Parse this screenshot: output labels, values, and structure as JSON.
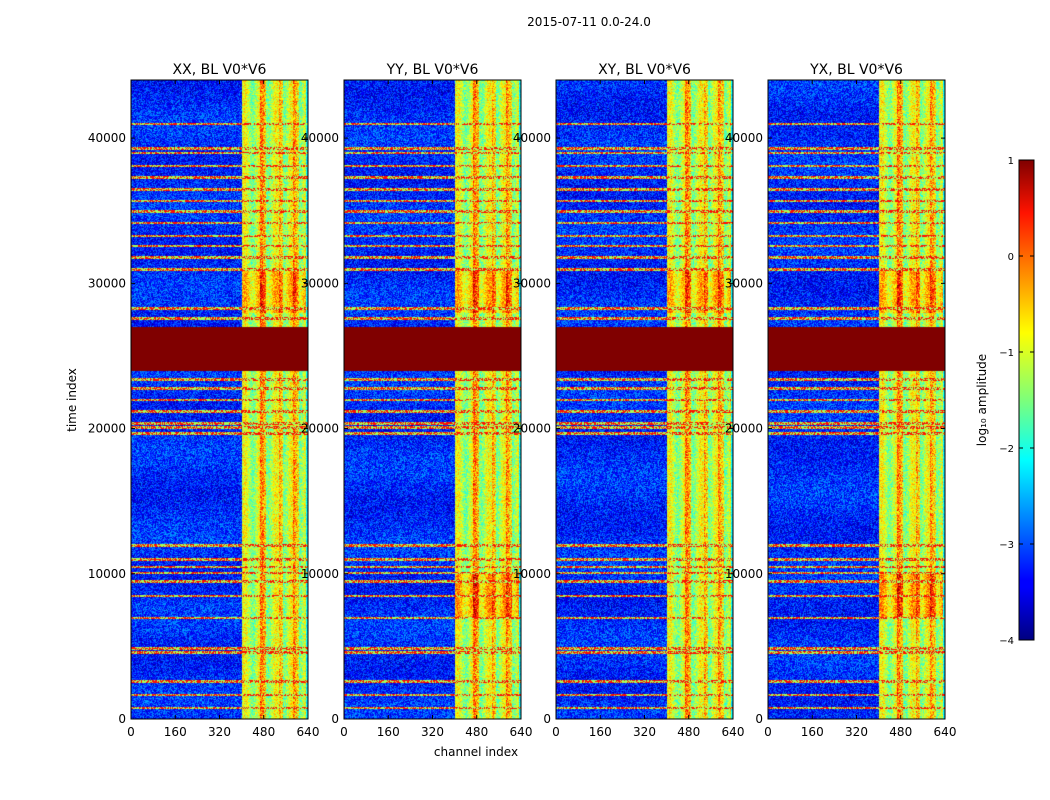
{
  "figure": {
    "suptitle": "2015-07-11 0.0-24.0"
  },
  "chart_data": {
    "type": "heatmap",
    "panels": [
      {
        "title": "XX, BL V0*V6",
        "polarization": "XX"
      },
      {
        "title": "YY, BL V0*V6",
        "polarization": "YY"
      },
      {
        "title": "XY, BL V0*V6",
        "polarization": "XY"
      },
      {
        "title": "YX, BL V0*V6",
        "polarization": "YX"
      }
    ],
    "xlabel": "channel index",
    "ylabel": "time index",
    "xlim": [
      0,
      640
    ],
    "ylim": [
      0,
      44000
    ],
    "xticks": [
      0,
      160,
      320,
      480,
      640
    ],
    "yticks": [
      0,
      10000,
      20000,
      30000,
      40000
    ],
    "xtick_labels": [
      "0",
      "160",
      "320",
      "480",
      "640"
    ],
    "ytick_labels": [
      "0",
      "10000",
      "20000",
      "30000",
      "40000"
    ],
    "colorbar": {
      "label": "log₁₀ amplitude",
      "range": [
        -4,
        1
      ],
      "ticks": [
        -4,
        -3,
        -2,
        -1,
        0,
        1
      ],
      "tick_labels": [
        "−4",
        "−3",
        "−2",
        "−1",
        "0",
        "1"
      ],
      "colormap": "jet"
    },
    "features": {
      "background_level": -3.2,
      "rfi_channel_band": [
        400,
        630
      ],
      "rfi_band_level": -1.2,
      "saturated_time_band": [
        24000,
        27000
      ],
      "saturated_level": 1.0,
      "hot_channels": [
        470,
        480,
        540,
        590,
        600
      ],
      "flagged_time_rows": [
        800,
        1700,
        2600,
        4600,
        4900,
        7000,
        8500,
        9500,
        10100,
        10500,
        11000,
        12000,
        19700,
        20100,
        20400,
        21200,
        22000,
        22800,
        23400,
        27600,
        28300,
        31000,
        31800,
        32600,
        33300,
        34200,
        35000,
        35700,
        36500,
        37300,
        38100,
        39000,
        39300,
        41000
      ]
    }
  }
}
